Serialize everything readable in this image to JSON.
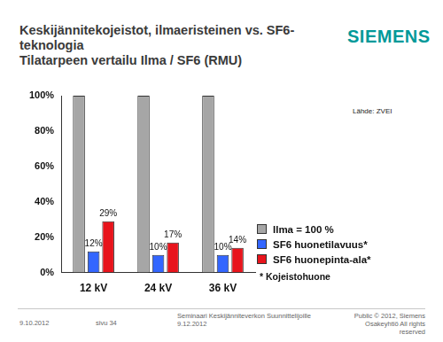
{
  "slide": {
    "title": [
      "Keskijännitekojeistot, ilmaeristeinen vs. SF6-",
      "teknologia",
      "Tilatarpeen vertailu Ilma / SF6 (RMU)"
    ],
    "logo": "SIEMENS",
    "source": "Lähde: ZVEI",
    "footnote": "* Kojeistohuone",
    "footer": {
      "date": "9.10.2012",
      "page": "sivu 34",
      "event": [
        "Seminaari Keskijänniteverkon Suunnittelijoille",
        "9.12.2012"
      ],
      "rights": [
        "Public © 2012, Siemens",
        "Osakeyhtiö All rights reserved"
      ]
    }
  },
  "chart_data": {
    "type": "bar",
    "categories": [
      "12 kV",
      "24 kV",
      "36 kV"
    ],
    "series": [
      {
        "name": "Ilma = 100 %",
        "color": "#a6a6a6",
        "values": [
          100,
          100,
          100
        ],
        "data_labels": false
      },
      {
        "name": "SF6 huonetilavuus*",
        "color": "#3366ff",
        "values": [
          12,
          10,
          10
        ],
        "data_labels": true,
        "value_labels": [
          "12%",
          "10%",
          "10%"
        ]
      },
      {
        "name": "SF6 huonepinta-ala*",
        "color": "#e8141c",
        "values": [
          29,
          17,
          14
        ],
        "data_labels": true,
        "value_labels": [
          "29%",
          "17%",
          "14%"
        ]
      }
    ],
    "ylim": [
      0,
      100
    ],
    "yticks": [
      {
        "value": 0,
        "label": "0%"
      },
      {
        "value": 20,
        "label": "20%"
      },
      {
        "value": 40,
        "label": "40%"
      },
      {
        "value": 60,
        "label": "60%"
      },
      {
        "value": 80,
        "label": "80%"
      },
      {
        "value": 100,
        "label": "100%"
      }
    ],
    "grid": false,
    "legend": "right"
  }
}
